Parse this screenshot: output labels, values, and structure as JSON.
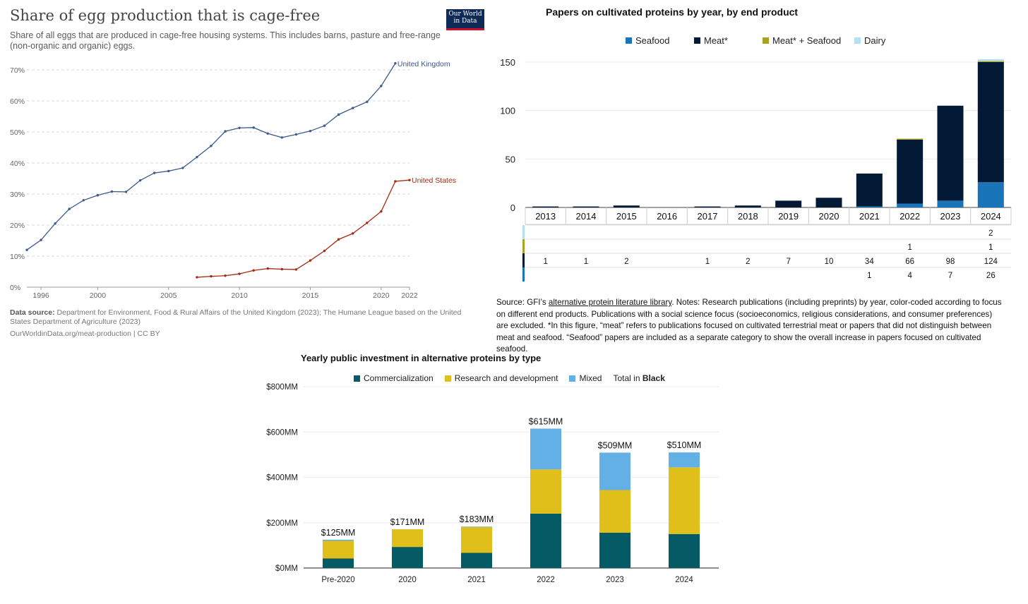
{
  "owid": {
    "title": "Share of egg production that is cage-free",
    "subtitle": "Share of all eggs that are produced in cage-free housing systems. This includes barns, pasture and free-range (non-organic and organic) eggs.",
    "logo_line1": "Our World",
    "logo_line2": "in Data",
    "source_label": "Data source:",
    "source_text": "Department for Environment, Food & Rural Affairs of the United Kingdom (2023); The Humane League based on the United States Department of Agriculture (2023)",
    "url_text": "OurWorldinData.org/meat-production | CC BY",
    "colors": {
      "uk": "#3c5a8a",
      "us": "#a32a12",
      "grid": "#d9d9d9",
      "text": "#666666"
    }
  },
  "gfi": {
    "title": "Papers on cultivated proteins by year, by end product",
    "note_part1": "Source: GFI’s ",
    "note_link": "alternative protein literature library",
    "note_part2": ". Notes: Research publications (including preprints) by year, color-coded according to focus on different end products. Publications with a social science focus (socioeconomics, religious considerations, and consumer preferences) are excluded. *In this figure, “meat” refers to publications focused on cultivated terrestrial meat or papers that did not distinguish between meat and seafood. “Seafood” papers are included as a separate category to show the overall increase in papers focused on cultivated seafood.",
    "table": {
      "dairy": [
        "",
        "",
        "",
        "",
        "",
        "",
        "",
        "",
        "",
        "",
        "",
        "2"
      ],
      "meat_seafood": [
        "",
        "",
        "",
        "",
        "",
        "",
        "",
        "",
        "",
        "1",
        "",
        "1"
      ],
      "meat": [
        "1",
        "1",
        "2",
        "",
        "1",
        "2",
        "7",
        "10",
        "34",
        "66",
        "98",
        "124"
      ],
      "seafood": [
        "",
        "",
        "",
        "",
        "",
        "",
        "",
        "",
        "1",
        "4",
        "7",
        "26"
      ]
    }
  },
  "invest": {
    "title": "Yearly public investment in alternative proteins by type",
    "legend_total_prefix": "Total in ",
    "legend_total_bold": "Black",
    "totals": [
      "$125MM",
      "$171MM",
      "$183MM",
      "$615MM",
      "$509MM",
      "$510MM"
    ]
  },
  "chart_data": [
    {
      "type": "line",
      "title": "Share of egg production that is cage-free",
      "ylabel": "",
      "ylim": [
        0,
        70
      ],
      "yticks": [
        "0%",
        "10%",
        "20%",
        "30%",
        "40%",
        "50%",
        "60%",
        "70%"
      ],
      "xticks": [
        "1996",
        "2000",
        "2005",
        "2010",
        "2015",
        "2020",
        "2022"
      ],
      "xlim": [
        1995,
        2022
      ],
      "grid": true,
      "series": [
        {
          "name": "United Kingdom",
          "color": "#3c5a8a",
          "x": [
            1995,
            1996,
            1997,
            1998,
            1999,
            2000,
            2001,
            2002,
            2003,
            2004,
            2005,
            2006,
            2007,
            2008,
            2009,
            2010,
            2011,
            2012,
            2013,
            2014,
            2015,
            2016,
            2017,
            2018,
            2019,
            2020,
            2021,
            2022
          ],
          "values": [
            12,
            15.2,
            20.5,
            25.2,
            28,
            29.6,
            30.8,
            30.7,
            34.4,
            36.8,
            37.4,
            38.4,
            41.9,
            45.5,
            50.2,
            51.3,
            51.4,
            49.5,
            48.2,
            49.2,
            50.3,
            52,
            55.6,
            57.7,
            59.7,
            64.8,
            72.1,
            null
          ]
        },
        {
          "name": "United States",
          "color": "#a32a12",
          "x": [
            2007,
            2008,
            2009,
            2010,
            2011,
            2012,
            2013,
            2014,
            2015,
            2016,
            2017,
            2018,
            2019,
            2020,
            2021,
            2022
          ],
          "values": [
            3.2,
            3.5,
            3.7,
            4.3,
            5.4,
            6,
            5.8,
            5.7,
            8.6,
            11.7,
            15.4,
            17.3,
            20.7,
            24.4,
            34.1,
            34.5
          ]
        }
      ]
    },
    {
      "type": "bar",
      "title": "Papers on cultivated proteins by year, by end product",
      "stacked": true,
      "categories": [
        "2013",
        "2014",
        "2015",
        "2016",
        "2017",
        "2018",
        "2019",
        "2020",
        "2021",
        "2022",
        "2023",
        "2024"
      ],
      "ylim": [
        0,
        150
      ],
      "yticks": [
        "0",
        "50",
        "100",
        "150"
      ],
      "legend_position": "top",
      "series": [
        {
          "name": "Seafood",
          "color": "#1a75b8",
          "values": [
            0,
            0,
            0,
            0,
            0,
            0,
            0,
            0,
            1,
            4,
            7,
            26
          ]
        },
        {
          "name": "Meat*",
          "color": "#021a35",
          "values": [
            1,
            1,
            2,
            0,
            1,
            2,
            7,
            10,
            34,
            66,
            98,
            124
          ]
        },
        {
          "name": "Meat* + Seafood",
          "color": "#a8a225",
          "values": [
            0,
            0,
            0,
            0,
            0,
            0,
            0,
            0,
            0,
            1,
            0,
            1
          ]
        },
        {
          "name": "Dairy",
          "color": "#b4e0ef",
          "values": [
            0,
            0,
            0,
            0,
            0,
            0,
            0,
            0,
            0,
            0,
            0,
            2
          ]
        }
      ]
    },
    {
      "type": "bar",
      "title": "Yearly public investment in alternative proteins by type",
      "stacked": true,
      "categories": [
        "Pre-2020",
        "2020",
        "2021",
        "2022",
        "2023",
        "2024"
      ],
      "ylim": [
        0,
        800
      ],
      "yticks": [
        "$0MM",
        "$200MM",
        "$400MM",
        "$600MM",
        "$800MM"
      ],
      "legend_position": "top",
      "series": [
        {
          "name": "Commercialization",
          "color": "#045b65",
          "values": [
            42,
            93,
            67,
            240,
            156,
            150
          ]
        },
        {
          "name": "Research and development",
          "color": "#e0bf1a",
          "values": [
            78,
            78,
            114,
            195,
            188,
            294
          ]
        },
        {
          "name": "Mixed",
          "color": "#62b0e6",
          "values": [
            5,
            0,
            2,
            180,
            165,
            66
          ]
        }
      ],
      "totals": [
        "$125MM",
        "$171MM",
        "$183MM",
        "$615MM",
        "$509MM",
        "$510MM"
      ]
    }
  ]
}
